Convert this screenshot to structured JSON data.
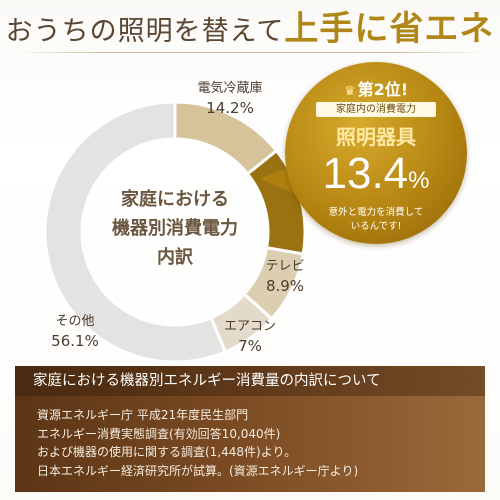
{
  "header": {
    "title_main": "おうちの照明を替えて",
    "title_accent": "上手に省エネ"
  },
  "chart_data": {
    "type": "pie",
    "title": "家庭における機器別消費電力内訳",
    "center_lines": [
      "家庭における",
      "機器別消費電力",
      "内訳"
    ],
    "categories": [
      "電気冷蔵庫",
      "照明器具",
      "テレビ",
      "エアコン",
      "その他"
    ],
    "values": [
      14.2,
      13.4,
      8.9,
      7.0,
      56.1
    ],
    "value_labels": [
      "14.2%",
      "13.4%",
      "8.9%",
      "7%",
      "56.1%"
    ],
    "colors": [
      "#d6c39a",
      "#9a7211",
      "#dccfb1",
      "#e3dacb",
      "#e3e3e1"
    ],
    "start_angle_deg": 0,
    "direction": "clockwise"
  },
  "callout": {
    "rank_label": "第2位!",
    "subtitle": "家庭内の消費電力",
    "item_name": "照明器具",
    "value_number": "13.4",
    "value_unit": "%",
    "note_line1": "意外と電力を消費して",
    "note_line2": "いるんです!"
  },
  "info": {
    "heading": "家庭における機器別エネルギー消費量の内訳について",
    "lines": [
      "資源エネルギー庁 平成21年度民生部門",
      "エネルギー消費実態調査(有効回答10,040件)",
      "および機器の使用に関する調査(1,448件)より。",
      "日本エネルギー経済研究所が試算。(資源エネルギー庁より)"
    ]
  }
}
